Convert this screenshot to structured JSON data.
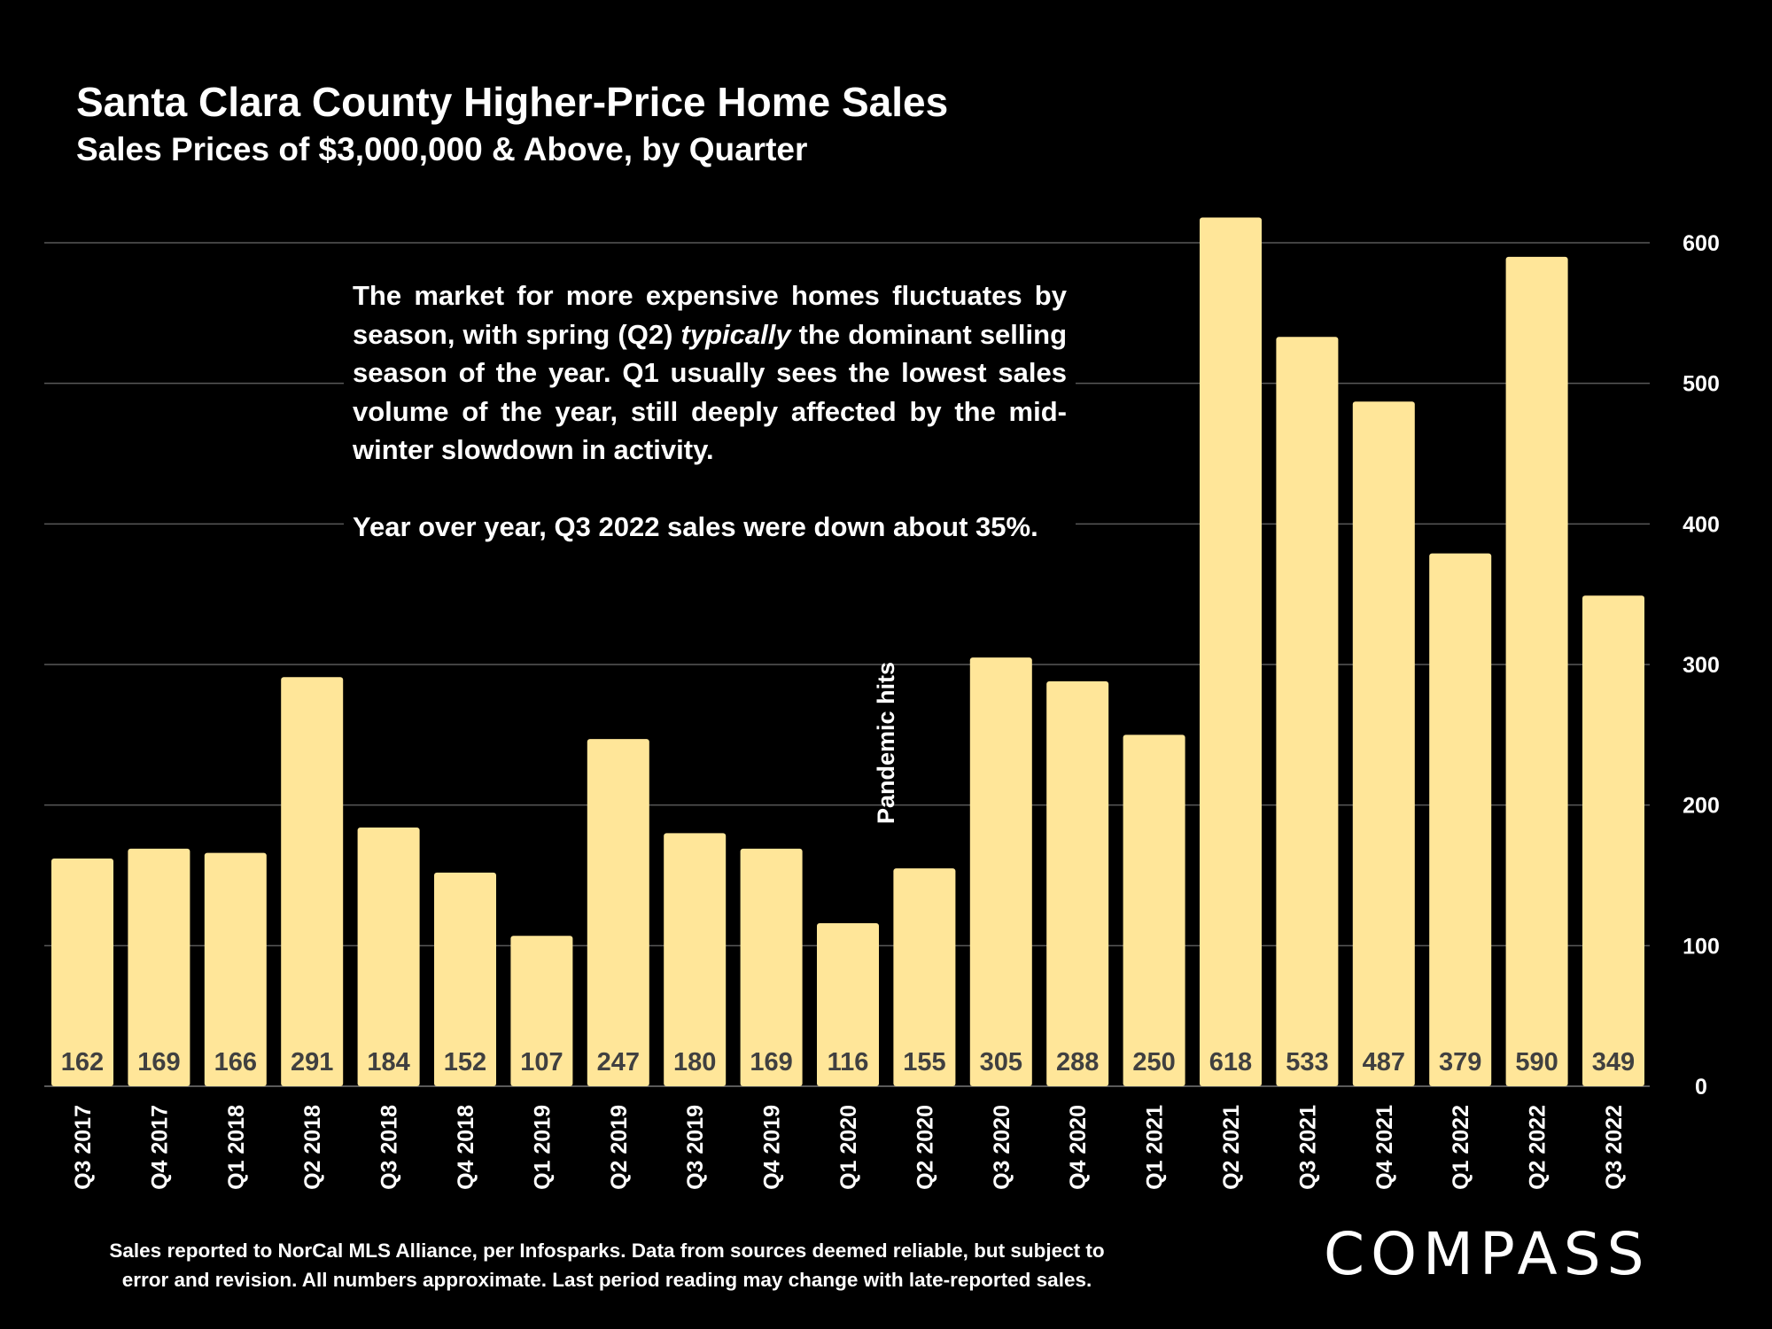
{
  "title": "Santa Clara County Higher-Price Home Sales",
  "subtitle": "Sales Prices of $3,000,000 & Above, by Quarter",
  "annotation": {
    "paragraph1_pre": "The market for more expensive homes fluctuates by season, with spring (Q2) ",
    "paragraph1_em": "typically",
    "paragraph1_post": " the dominant selling season of the year. Q1 usually sees the lowest sales volume of the year, still deeply affected by the mid-winter slowdown in activity.",
    "paragraph2": "Year over year, Q3 2022 sales were down about 35%."
  },
  "footnote": {
    "line1": "Sales reported to NorCal MLS Alliance, per Infosparks. Data from sources deemed reliable, but subject to",
    "line2": "error and revision. All numbers approximate. Last period reading may change with late-reported sales."
  },
  "logo": "COMPASS",
  "colors": {
    "background": "#000000",
    "bar": "#FFE699",
    "gridline": "#595959",
    "text": "#FFFFFF",
    "bar_label": "#404040"
  },
  "chart_data": {
    "type": "bar",
    "categories": [
      "Q3 2017",
      "Q4 2017",
      "Q1 2018",
      "Q2 2018",
      "Q3 2018",
      "Q4 2018",
      "Q1 2019",
      "Q2 2019",
      "Q3 2019",
      "Q4 2019",
      "Q1 2020",
      "Q2 2020",
      "Q3 2020",
      "Q4 2020",
      "Q1 2021",
      "Q2 2021",
      "Q3 2021",
      "Q4 2021",
      "Q1 2022",
      "Q2 2022",
      "Q3 2022"
    ],
    "values": [
      162,
      169,
      166,
      291,
      184,
      152,
      107,
      247,
      180,
      169,
      116,
      155,
      305,
      288,
      250,
      618,
      533,
      487,
      379,
      590,
      349
    ],
    "ylim": [
      0,
      600
    ],
    "yticks": [
      0,
      100,
      200,
      300,
      400,
      500,
      600
    ],
    "y_axis_side": "right",
    "grid": true,
    "data_labels": true,
    "event_label": {
      "text": "Pandemic hits",
      "after_category": "Q1 2020"
    }
  }
}
